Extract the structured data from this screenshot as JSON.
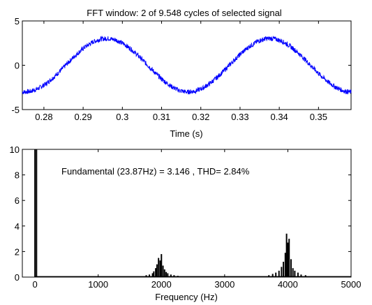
{
  "colors": {
    "signal": "#0000ff",
    "spectrum": "#000000",
    "axes": "#000000",
    "background": "#ffffff"
  },
  "chart_data": [
    {
      "type": "line",
      "title": "FFT window: 2 of 9.548 cycles of selected signal",
      "xlabel": "Time (s)",
      "ylabel": "",
      "xlim": [
        0.2745,
        0.3583
      ],
      "ylim": [
        -5,
        5
      ],
      "xticks": [
        0.28,
        0.29,
        0.3,
        0.31,
        0.32,
        0.33,
        0.34,
        0.35
      ],
      "xtick_labels": [
        "0.28",
        "0.29",
        "0.3",
        "0.31",
        "0.32",
        "0.33",
        "0.34",
        "0.35"
      ],
      "yticks": [
        -5,
        0,
        5
      ],
      "ytick_labels": [
        "-5",
        "0",
        "5"
      ],
      "grid": false,
      "series": [
        {
          "x": [
            0.2745,
            0.2765,
            0.2785,
            0.2805,
            0.2825,
            0.2845,
            0.2865,
            0.2885,
            0.2905,
            0.2925,
            0.2945,
            0.2965,
            0.2985,
            0.3005,
            0.3025,
            0.3045,
            0.3065,
            0.3085,
            0.3105,
            0.3125,
            0.3145,
            0.3165,
            0.3185,
            0.3205,
            0.3225,
            0.3245,
            0.3265,
            0.3285,
            0.3305,
            0.3325,
            0.3345,
            0.3365,
            0.3385,
            0.3405,
            0.3425,
            0.3445,
            0.3465,
            0.3485,
            0.3505,
            0.3525,
            0.3545,
            0.3565,
            0.3583
          ],
          "y": [
            -3.03,
            -2.96,
            -2.64,
            -2.1,
            -1.36,
            -0.48,
            0.44,
            1.31,
            2.07,
            2.63,
            2.96,
            3.03,
            2.83,
            2.38,
            1.71,
            0.89,
            -0.02,
            -0.92,
            -1.74,
            -2.4,
            -2.85,
            -3.03,
            -2.93,
            -2.58,
            -1.99,
            -1.23,
            -0.34,
            0.57,
            1.43,
            2.16,
            2.7,
            3.0,
            3.03,
            2.75,
            2.24,
            1.53,
            0.67,
            -0.24,
            -1.13,
            -1.9,
            -2.51,
            -2.91,
            -3.04
          ]
        }
      ]
    },
    {
      "type": "bar",
      "title": "",
      "annotation": "Fundamental (23.87Hz) = 3.146 , THD= 2.84%",
      "xlabel": "Frequency (Hz)",
      "ylabel": "",
      "xlim": [
        -200,
        5000
      ],
      "ylim": [
        0,
        10
      ],
      "xticks": [
        0,
        1000,
        2000,
        3000,
        4000,
        5000
      ],
      "xtick_labels": [
        "0",
        "1000",
        "2000",
        "3000",
        "4000",
        "5000"
      ],
      "yticks": [
        0,
        2,
        4,
        6,
        8,
        10
      ],
      "ytick_labels": [
        "0",
        "2",
        "4",
        "6",
        "8",
        "10"
      ],
      "grid": false,
      "series": [
        {
          "x": [
            0,
            24,
            1760,
            1810,
            1860,
            1880,
            1910,
            1930,
            1955,
            1980,
            2000,
            2025,
            2050,
            2075,
            2100,
            2150,
            2200,
            2260,
            3700,
            3760,
            3810,
            3860,
            3900,
            3930,
            3960,
            3980,
            4000,
            4020,
            4050,
            4080,
            4110,
            4160,
            4210,
            4280
          ],
          "y": [
            10,
            10,
            0.15,
            0.2,
            0.3,
            0.45,
            0.7,
            1.0,
            1.5,
            1.3,
            1.8,
            0.9,
            0.6,
            0.4,
            0.3,
            0.2,
            0.15,
            0.1,
            0.15,
            0.25,
            0.35,
            0.5,
            0.8,
            1.2,
            1.9,
            3.4,
            2.7,
            3.0,
            1.4,
            0.7,
            0.5,
            0.35,
            0.2,
            0.15
          ]
        }
      ]
    }
  ]
}
